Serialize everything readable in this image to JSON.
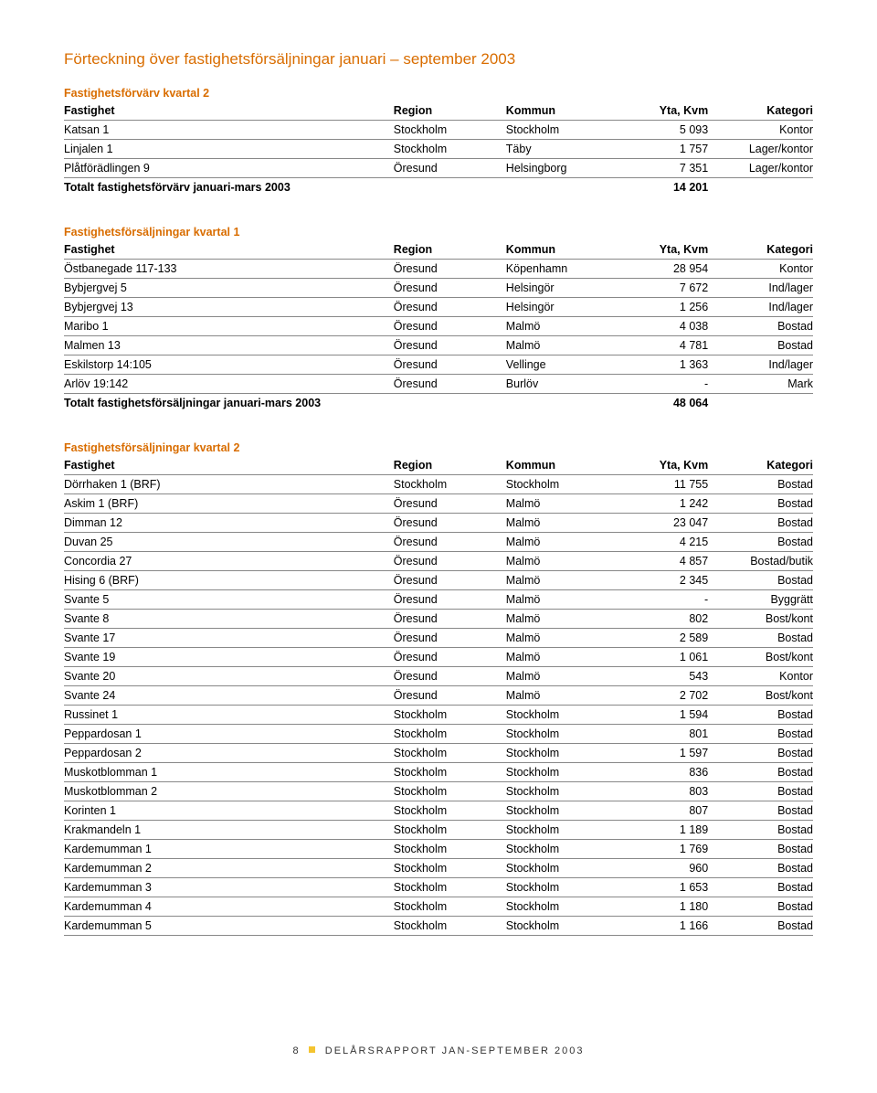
{
  "page_title": "Förteckning över fastighetsförsäljningar januari – september 2003",
  "header": {
    "fastighet": "Fastighet",
    "region": "Region",
    "kommun": "Kommun",
    "yta": "Yta, Kvm",
    "kategori": "Kategori"
  },
  "sections": [
    {
      "title": "Fastighetsförvärv kvartal 2",
      "rows": [
        {
          "fastighet": "Katsan 1",
          "region": "Stockholm",
          "kommun": "Stockholm",
          "yta": "5 093",
          "kategori": "Kontor"
        },
        {
          "fastighet": "Linjalen 1",
          "region": "Stockholm",
          "kommun": "Täby",
          "yta": "1 757",
          "kategori": "Lager/kontor"
        },
        {
          "fastighet": "Plåtförädlingen 9",
          "region": "Öresund",
          "kommun": "Helsingborg",
          "yta": "7 351",
          "kategori": "Lager/kontor"
        }
      ],
      "total": {
        "label": "Totalt fastighetsförvärv januari-mars 2003",
        "yta": "14 201"
      }
    },
    {
      "title": "Fastighetsförsäljningar kvartal 1",
      "rows": [
        {
          "fastighet": "Östbanegade 117-133",
          "region": "Öresund",
          "kommun": "Köpenhamn",
          "yta": "28 954",
          "kategori": "Kontor"
        },
        {
          "fastighet": "Bybjergvej 5",
          "region": "Öresund",
          "kommun": "Helsingör",
          "yta": "7 672",
          "kategori": "Ind/lager"
        },
        {
          "fastighet": "Bybjergvej 13",
          "region": "Öresund",
          "kommun": "Helsingör",
          "yta": "1 256",
          "kategori": "Ind/lager"
        },
        {
          "fastighet": "Maribo 1",
          "region": "Öresund",
          "kommun": "Malmö",
          "yta": "4 038",
          "kategori": "Bostad"
        },
        {
          "fastighet": "Malmen 13",
          "region": "Öresund",
          "kommun": "Malmö",
          "yta": "4 781",
          "kategori": "Bostad"
        },
        {
          "fastighet": "Eskilstorp 14:105",
          "region": "Öresund",
          "kommun": "Vellinge",
          "yta": "1 363",
          "kategori": "Ind/lager"
        },
        {
          "fastighet": "Arlöv 19:142",
          "region": "Öresund",
          "kommun": "Burlöv",
          "yta": "-",
          "kategori": "Mark"
        }
      ],
      "total": {
        "label": "Totalt fastighetsförsäljningar januari-mars 2003",
        "yta": "48 064"
      }
    },
    {
      "title": "Fastighetsförsäljningar kvartal 2",
      "rows": [
        {
          "fastighet": "Dörrhaken 1 (BRF)",
          "region": "Stockholm",
          "kommun": "Stockholm",
          "yta": "11 755",
          "kategori": "Bostad"
        },
        {
          "fastighet": "Askim 1 (BRF)",
          "region": "Öresund",
          "kommun": "Malmö",
          "yta": "1 242",
          "kategori": "Bostad"
        },
        {
          "fastighet": "Dimman 12",
          "region": "Öresund",
          "kommun": "Malmö",
          "yta": "23 047",
          "kategori": "Bostad"
        },
        {
          "fastighet": "Duvan 25",
          "region": "Öresund",
          "kommun": "Malmö",
          "yta": "4 215",
          "kategori": "Bostad"
        },
        {
          "fastighet": "Concordia 27",
          "region": "Öresund",
          "kommun": "Malmö",
          "yta": "4 857",
          "kategori": "Bostad/butik"
        },
        {
          "fastighet": "Hising 6 (BRF)",
          "region": "Öresund",
          "kommun": "Malmö",
          "yta": "2 345",
          "kategori": "Bostad"
        },
        {
          "fastighet": "Svante 5",
          "region": "Öresund",
          "kommun": "Malmö",
          "yta": "-",
          "kategori": "Byggrätt"
        },
        {
          "fastighet": "Svante 8",
          "region": "Öresund",
          "kommun": "Malmö",
          "yta": "802",
          "kategori": "Bost/kont"
        },
        {
          "fastighet": "Svante 17",
          "region": "Öresund",
          "kommun": "Malmö",
          "yta": "2 589",
          "kategori": "Bostad"
        },
        {
          "fastighet": "Svante 19",
          "region": "Öresund",
          "kommun": "Malmö",
          "yta": "1 061",
          "kategori": "Bost/kont"
        },
        {
          "fastighet": "Svante 20",
          "region": "Öresund",
          "kommun": "Malmö",
          "yta": "543",
          "kategori": "Kontor"
        },
        {
          "fastighet": "Svante 24",
          "region": "Öresund",
          "kommun": "Malmö",
          "yta": "2 702",
          "kategori": "Bost/kont"
        },
        {
          "fastighet": "Russinet 1",
          "region": "Stockholm",
          "kommun": "Stockholm",
          "yta": "1 594",
          "kategori": "Bostad"
        },
        {
          "fastighet": "Peppardosan 1",
          "region": "Stockholm",
          "kommun": "Stockholm",
          "yta": "801",
          "kategori": "Bostad"
        },
        {
          "fastighet": "Peppardosan 2",
          "region": "Stockholm",
          "kommun": "Stockholm",
          "yta": "1 597",
          "kategori": "Bostad"
        },
        {
          "fastighet": "Muskotblomman 1",
          "region": "Stockholm",
          "kommun": "Stockholm",
          "yta": "836",
          "kategori": "Bostad"
        },
        {
          "fastighet": "Muskotblomman 2",
          "region": "Stockholm",
          "kommun": "Stockholm",
          "yta": "803",
          "kategori": "Bostad"
        },
        {
          "fastighet": "Korinten 1",
          "region": "Stockholm",
          "kommun": "Stockholm",
          "yta": "807",
          "kategori": "Bostad"
        },
        {
          "fastighet": "Krakmandeln 1",
          "region": "Stockholm",
          "kommun": "Stockholm",
          "yta": "1 189",
          "kategori": "Bostad"
        },
        {
          "fastighet": "Kardemumman 1",
          "region": "Stockholm",
          "kommun": "Stockholm",
          "yta": "1 769",
          "kategori": "Bostad"
        },
        {
          "fastighet": "Kardemumman 2",
          "region": "Stockholm",
          "kommun": "Stockholm",
          "yta": "960",
          "kategori": "Bostad"
        },
        {
          "fastighet": "Kardemumman 3",
          "region": "Stockholm",
          "kommun": "Stockholm",
          "yta": "1 653",
          "kategori": "Bostad"
        },
        {
          "fastighet": "Kardemumman 4",
          "region": "Stockholm",
          "kommun": "Stockholm",
          "yta": "1 180",
          "kategori": "Bostad"
        },
        {
          "fastighet": "Kardemumman 5",
          "region": "Stockholm",
          "kommun": "Stockholm",
          "yta": "1 166",
          "kategori": "Bostad"
        }
      ],
      "total": null
    }
  ],
  "footer": {
    "page_number": "8",
    "text": "DELÅRSRAPPORT JAN-SEPTEMBER 2003"
  }
}
